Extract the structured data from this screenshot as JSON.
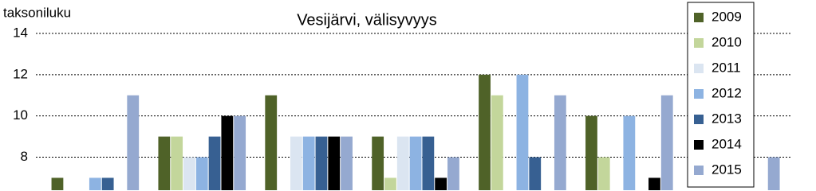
{
  "chart_data": {
    "type": "bar",
    "title": "Vesijärvi, välisyvyys",
    "y_label": "taksoniluku",
    "categories": [
      null,
      null,
      null,
      null,
      null,
      null,
      null
    ],
    "series": [
      {
        "name": "2009",
        "color": "#4f6228",
        "values": [
          7,
          9,
          11,
          9,
          12,
          10,
          null
        ]
      },
      {
        "name": "2010",
        "color": "#c3d69b",
        "values": [
          null,
          9,
          null,
          7,
          11,
          8,
          null
        ]
      },
      {
        "name": "2011",
        "color": "#dbe5f1",
        "values": [
          null,
          8,
          9,
          9,
          null,
          null,
          null
        ]
      },
      {
        "name": "2012",
        "color": "#8db3e2",
        "values": [
          7,
          8,
          9,
          9,
          12,
          10,
          null
        ]
      },
      {
        "name": "2013",
        "color": "#376092",
        "values": [
          7,
          9,
          9,
          9,
          8,
          null,
          null
        ]
      },
      {
        "name": "2014",
        "color": "#000000",
        "values": [
          null,
          10,
          9,
          7,
          null,
          7,
          null
        ]
      },
      {
        "name": "2015",
        "color": "#95a9d0",
        "values": [
          11,
          10,
          9,
          8,
          11,
          11,
          8
        ]
      }
    ],
    "ylim": [
      6.4,
      14
    ],
    "yticks": [
      8,
      10,
      12,
      14
    ],
    "grid": true,
    "legend": "right"
  }
}
